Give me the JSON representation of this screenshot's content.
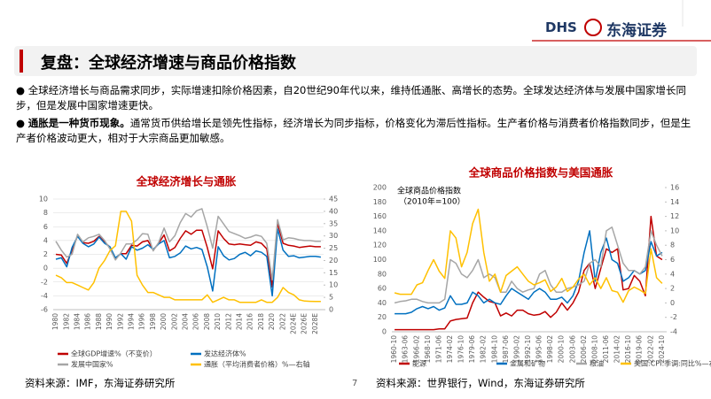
{
  "header": {
    "logo_text": "DHS",
    "company": "东海证券"
  },
  "title": "复盘：全球经济增速与商品价格指数",
  "bullets": [
    {
      "text": "全球经济增长与商品需求同步，实际增速扣除价格因素，自20世纪90年代以来，维持低通胀、高增长的态势。全球发达经济体与发展中国家增长同步，但是发展中国家增速更快。"
    },
    {
      "bold": "通胀是一种货币现象。",
      "text": "通常货币供给增长是领先性指标，经济增长为同步指标，价格变化为滞后性指标。生产者价格与消费者价格指数同步，但是生产者价格波动更大，相对于大宗商品更加敏感。"
    }
  ],
  "sources": [
    "资料来源：IMF，东海证券研究所",
    "资料来源：世界银行，Wind，东海证券研究所"
  ],
  "page_number": "7",
  "chart_data": [
    {
      "type": "line",
      "title": "全球经济增长与通胀",
      "grid": true,
      "categories": [
        "1980",
        null,
        "1982",
        null,
        "1984",
        null,
        "1986",
        null,
        "1988",
        null,
        "1990",
        null,
        "1992",
        null,
        "1994",
        null,
        "1996",
        null,
        "1998",
        null,
        "2000",
        null,
        "2002",
        null,
        "2004",
        null,
        "2006",
        null,
        "2008",
        null,
        "2010",
        null,
        "2012",
        null,
        "2014",
        null,
        "2016",
        null,
        "2018",
        null,
        "2020",
        null,
        "2022",
        null,
        "2024E",
        null,
        "2026E",
        null,
        "2028E",
        null
      ],
      "ylim": [
        -6,
        10
      ],
      "yticks": [
        -6,
        -4,
        -2,
        0,
        2,
        4,
        6,
        8,
        10
      ],
      "y2lim": [
        0,
        45
      ],
      "y2ticks": [
        0,
        5,
        10,
        15,
        20,
        25,
        30,
        35,
        40,
        45
      ],
      "series": [
        {
          "name": "全球GDP增速%（不变价）",
          "color": "#c00000",
          "values": [
            2.0,
            1.9,
            0.7,
            2.6,
            4.7,
            3.7,
            3.6,
            3.9,
            4.6,
            3.8,
            3.0,
            1.4,
            2.1,
            2.1,
            3.3,
            3.2,
            3.8,
            4.0,
            2.6,
            3.6,
            4.8,
            2.5,
            3.0,
            4.3,
            5.4,
            4.9,
            5.5,
            5.5,
            3.0,
            -0.1,
            5.4,
            4.3,
            3.5,
            3.4,
            3.5,
            3.4,
            3.3,
            3.8,
            3.6,
            2.8,
            -2.7,
            6.5,
            3.6,
            3.3,
            3.2,
            3.0,
            3.1,
            3.2,
            3.1,
            3.1
          ]
        },
        {
          "name": "发达经济体%",
          "color": "#0070c0",
          "values": [
            1.3,
            1.5,
            0.2,
            3.0,
            4.6,
            3.6,
            3.1,
            3.5,
            4.5,
            3.6,
            3.1,
            1.5,
            2.1,
            1.3,
            3.1,
            2.6,
            2.9,
            3.4,
            2.7,
            3.5,
            4.0,
            1.5,
            1.7,
            2.2,
            3.2,
            2.8,
            3.0,
            2.7,
            0.2,
            -3.3,
            3.1,
            1.8,
            1.2,
            1.4,
            2.0,
            2.3,
            1.8,
            2.5,
            2.3,
            1.7,
            -4.0,
            5.7,
            2.6,
            1.7,
            1.8,
            1.5,
            1.6,
            1.7,
            1.7,
            1.6
          ]
        },
        {
          "name": "发展中国家%",
          "color": "#a6a6a6",
          "values": [
            3.9,
            2.6,
            1.6,
            2.0,
            4.9,
            3.8,
            4.4,
            4.6,
            4.9,
            4.0,
            2.8,
            1.2,
            2.2,
            3.5,
            3.5,
            4.1,
            5.0,
            4.9,
            2.5,
            3.7,
            5.8,
            3.8,
            4.7,
            6.6,
            7.9,
            7.4,
            8.3,
            8.6,
            6.0,
            2.9,
            7.5,
            6.4,
            5.3,
            5.0,
            4.7,
            4.3,
            4.5,
            4.8,
            4.6,
            3.6,
            -1.7,
            7.0,
            4.1,
            4.4,
            4.3,
            4.1,
            4.0,
            4.0,
            3.9,
            3.9
          ]
        },
        {
          "name": "通胀（平均消费者价格）%—右轴",
          "color": "#ffc000",
          "axis": "y2",
          "values": [
            14,
            13,
            11,
            11,
            10,
            9,
            8,
            11,
            17,
            20,
            24,
            26,
            40,
            40,
            36,
            14,
            10,
            7,
            7,
            6,
            5,
            5,
            4,
            4,
            4,
            4,
            4,
            4,
            6,
            3,
            4,
            5,
            4,
            4,
            3,
            3,
            3,
            3,
            4,
            3,
            3,
            5,
            9,
            7,
            6,
            4,
            3.5,
            3.4,
            3.3,
            3.3
          ]
        }
      ]
    },
    {
      "type": "line",
      "title": "全球商品价格指数与美国通胀",
      "grid": false,
      "annotation": [
        "全球商品价格指数",
        "（2010年=100）"
      ],
      "categories": [
        "1960-10",
        null,
        "1963-06",
        null,
        "1966-02",
        null,
        "1968-10",
        null,
        "1971-06",
        null,
        "1974-02",
        null,
        "1976-10",
        null,
        "1979-06",
        null,
        "1982-02",
        null,
        "1984-10",
        null,
        "1987-06",
        null,
        "1990-02",
        null,
        "1992-10",
        null,
        "1995-06",
        null,
        "1998-02",
        null,
        "2000-10",
        null,
        "2003-06",
        null,
        "2006-02",
        null,
        "2008-10",
        null,
        "2011-06",
        null,
        "2014-02",
        null,
        "2016-10",
        null,
        "2019-06",
        null,
        "2022-02",
        null,
        "2024-10"
      ],
      "ylim": [
        0,
        200
      ],
      "yticks": [
        0,
        20,
        40,
        60,
        80,
        100,
        120,
        140,
        160,
        180,
        200
      ],
      "y2lim": [
        -4,
        16
      ],
      "y2ticks": [
        -4,
        -2,
        0,
        2,
        4,
        6,
        8,
        10,
        12,
        14,
        16
      ],
      "series": [
        {
          "name": "能源",
          "color": "#c00000",
          "values": [
            3,
            3,
            3,
            3,
            3,
            3,
            3,
            3,
            4,
            4,
            15,
            17,
            18,
            19,
            40,
            55,
            48,
            42,
            40,
            22,
            26,
            22,
            30,
            30,
            25,
            23,
            24,
            28,
            20,
            27,
            40,
            30,
            40,
            55,
            85,
            95,
            60,
            88,
            115,
            110,
            115,
            58,
            60,
            78,
            70,
            50,
            160,
            105,
            100
          ]
        },
        {
          "name": "金属和矿物",
          "color": "#0070c0",
          "values": [
            25,
            25,
            25,
            27,
            32,
            35,
            32,
            35,
            30,
            33,
            50,
            38,
            38,
            40,
            55,
            50,
            40,
            45,
            40,
            38,
            50,
            60,
            55,
            50,
            45,
            55,
            60,
            55,
            45,
            45,
            48,
            40,
            50,
            70,
            110,
            140,
            70,
            110,
            130,
            100,
            95,
            70,
            75,
            85,
            80,
            85,
            125,
            105,
            110
          ]
        },
        {
          "name": "粮油",
          "color": "#a6a6a6",
          "values": [
            40,
            42,
            43,
            45,
            45,
            42,
            40,
            40,
            40,
            45,
            100,
            95,
            80,
            75,
            85,
            100,
            75,
            80,
            75,
            55,
            55,
            70,
            60,
            55,
            58,
            60,
            80,
            85,
            65,
            55,
            55,
            60,
            62,
            65,
            70,
            95,
            100,
            90,
            140,
            145,
            120,
            95,
            85,
            85,
            80,
            90,
            140,
            120,
            105
          ]
        },
        {
          "name": "美国:CPI:季调:同比%—右轴",
          "color": "#ffc000",
          "axis": "y2",
          "values": [
            1.4,
            1.2,
            1.2,
            1.2,
            2.5,
            2.8,
            4.5,
            6,
            4.4,
            3.4,
            10,
            9,
            5,
            7,
            11,
            13,
            7,
            3,
            4,
            1.5,
            3.8,
            4.4,
            5,
            4,
            3,
            2.5,
            2.8,
            3.2,
            1.6,
            2.2,
            3.4,
            1.6,
            2.2,
            3.3,
            4,
            2.5,
            3.5,
            2,
            3.5,
            1.7,
            1.5,
            0.1,
            1.7,
            2.2,
            1.8,
            1.3,
            7.5,
            3.5,
            2.7
          ]
        }
      ]
    }
  ]
}
